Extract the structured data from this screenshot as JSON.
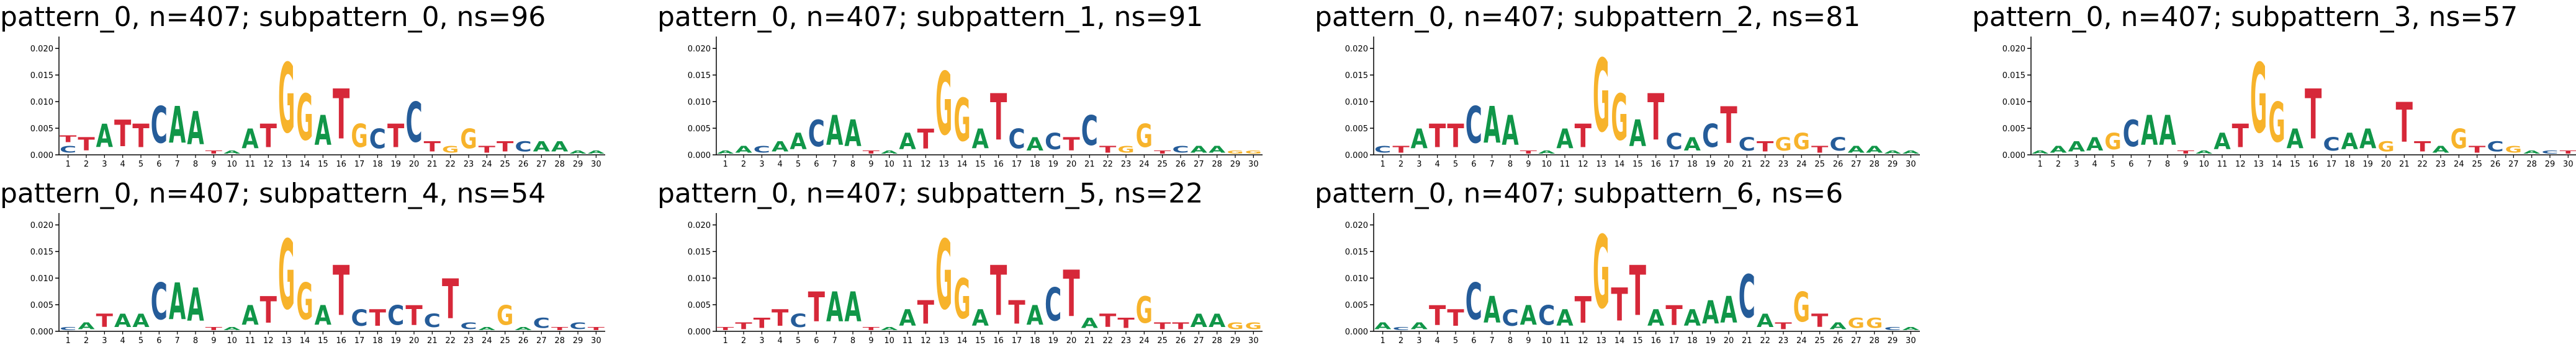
{
  "panels": [
    {
      "title": "pattern_0, n=407; subpattern_0, ns=96"
    },
    {
      "title": "pattern_0, n=407; subpattern_1, ns=91"
    },
    {
      "title": "pattern_0, n=407; subpattern_2, ns=81"
    },
    {
      "title": "pattern_0, n=407; subpattern_3, ns=57"
    },
    {
      "title": "pattern_0, n=407; subpattern_4, ns=54"
    },
    {
      "title": "pattern_0, n=407; subpattern_5, ns=22"
    },
    {
      "title": "pattern_0, n=407; subpattern_6, ns=6"
    }
  ],
  "colors": {
    "A": "#109648",
    "C": "#255c99",
    "G": "#f7b32b",
    "T": "#d62839"
  },
  "chart_data": {
    "type": "sequence-logo",
    "xticks": [
      "1",
      "2",
      "3",
      "4",
      "5",
      "6",
      "7",
      "8",
      "9",
      "10",
      "11",
      "12",
      "13",
      "14",
      "15",
      "16",
      "17",
      "18",
      "19",
      "20",
      "21",
      "22",
      "23",
      "24",
      "25",
      "26",
      "27",
      "28",
      "29",
      "30"
    ],
    "yticks": [
      "0.000",
      "0.005",
      "0.010",
      "0.015",
      "0.020"
    ],
    "ylim": [
      0,
      0.022
    ],
    "logos": [
      [
        [
          [
            "C",
            0.002
          ],
          [
            "T",
            0.002
          ]
        ],
        [
          [
            "T",
            0.004
          ]
        ],
        [
          [
            "A",
            0.007
          ]
        ],
        [
          [
            "T",
            0.008
          ]
        ],
        [
          [
            "T",
            0.007
          ]
        ],
        [
          [
            "C",
            0.011
          ]
        ],
        [
          [
            "A",
            0.011
          ]
        ],
        [
          [
            "A",
            0.01
          ]
        ],
        [
          [
            "T",
            0.001
          ]
        ],
        [
          [
            "A",
            0.001
          ]
        ],
        [
          [
            "A",
            0.006
          ]
        ],
        [
          [
            "T",
            0.007
          ]
        ],
        [
          [
            "G",
            0.021
          ]
        ],
        [
          [
            "G",
            0.014
          ]
        ],
        [
          [
            "A",
            0.009
          ]
        ],
        [
          [
            "T",
            0.015
          ]
        ],
        [
          [
            "G",
            0.007
          ]
        ],
        [
          [
            "C",
            0.006
          ]
        ],
        [
          [
            "T",
            0.007
          ]
        ],
        [
          [
            "C",
            0.012
          ]
        ],
        [
          [
            "T",
            0.003
          ]
        ],
        [
          [
            "G",
            0.002
          ]
        ],
        [
          [
            "G",
            0.006
          ]
        ],
        [
          [
            "T",
            0.002
          ]
        ],
        [
          [
            "T",
            0.003
          ]
        ],
        [
          [
            "C",
            0.003
          ]
        ],
        [
          [
            "A",
            0.003
          ]
        ],
        [
          [
            "A",
            0.003
          ]
        ],
        [
          [
            "A",
            0.001
          ]
        ],
        [
          [
            "A",
            0.001
          ]
        ]
      ],
      [
        [
          [
            "A",
            0.001
          ]
        ],
        [
          [
            "A",
            0.002
          ]
        ],
        [
          [
            "C",
            0.002
          ]
        ],
        [
          [
            "A",
            0.003
          ]
        ],
        [
          [
            "A",
            0.005
          ]
        ],
        [
          [
            "C",
            0.008
          ]
        ],
        [
          [
            "A",
            0.009
          ]
        ],
        [
          [
            "A",
            0.008
          ]
        ],
        [
          [
            "T",
            0.001
          ]
        ],
        [
          [
            "A",
            0.001
          ]
        ],
        [
          [
            "A",
            0.005
          ]
        ],
        [
          [
            "T",
            0.006
          ]
        ],
        [
          [
            "G",
            0.019
          ]
        ],
        [
          [
            "G",
            0.013
          ]
        ],
        [
          [
            "A",
            0.006
          ]
        ],
        [
          [
            "T",
            0.014
          ]
        ],
        [
          [
            "C",
            0.006
          ]
        ],
        [
          [
            "A",
            0.004
          ]
        ],
        [
          [
            "C",
            0.005
          ]
        ],
        [
          [
            "T",
            0.004
          ]
        ],
        [
          [
            "C",
            0.009
          ]
        ],
        [
          [
            "T",
            0.002
          ]
        ],
        [
          [
            "G",
            0.002
          ]
        ],
        [
          [
            "G",
            0.007
          ]
        ],
        [
          [
            "T",
            0.001
          ]
        ],
        [
          [
            "C",
            0.002
          ]
        ],
        [
          [
            "A",
            0.002
          ]
        ],
        [
          [
            "A",
            0.002
          ]
        ],
        [
          [
            "G",
            0.001
          ]
        ],
        [
          [
            "G",
            0.001
          ]
        ]
      ],
      [
        [
          [
            "C",
            0.002
          ]
        ],
        [
          [
            "T",
            0.002
          ]
        ],
        [
          [
            "A",
            0.006
          ]
        ],
        [
          [
            "T",
            0.007
          ]
        ],
        [
          [
            "T",
            0.007
          ]
        ],
        [
          [
            "C",
            0.011
          ]
        ],
        [
          [
            "A",
            0.011
          ]
        ],
        [
          [
            "A",
            0.009
          ]
        ],
        [
          [
            "T",
            0.001
          ]
        ],
        [
          [
            "A",
            0.001
          ]
        ],
        [
          [
            "A",
            0.006
          ]
        ],
        [
          [
            "T",
            0.007
          ]
        ],
        [
          [
            "G",
            0.022
          ]
        ],
        [
          [
            "G",
            0.014
          ]
        ],
        [
          [
            "A",
            0.008
          ]
        ],
        [
          [
            "T",
            0.014
          ]
        ],
        [
          [
            "C",
            0.005
          ]
        ],
        [
          [
            "A",
            0.004
          ]
        ],
        [
          [
            "C",
            0.007
          ]
        ],
        [
          [
            "T",
            0.011
          ]
        ],
        [
          [
            "C",
            0.004
          ]
        ],
        [
          [
            "T",
            0.003
          ]
        ],
        [
          [
            "G",
            0.004
          ]
        ],
        [
          [
            "G",
            0.005
          ]
        ],
        [
          [
            "T",
            0.002
          ]
        ],
        [
          [
            "C",
            0.004
          ]
        ],
        [
          [
            "A",
            0.002
          ]
        ],
        [
          [
            "A",
            0.002
          ]
        ],
        [
          [
            "A",
            0.001
          ]
        ],
        [
          [
            "A",
            0.001
          ]
        ]
      ],
      [
        [
          [
            "A",
            0.001
          ]
        ],
        [
          [
            "A",
            0.002
          ]
        ],
        [
          [
            "A",
            0.003
          ]
        ],
        [
          [
            "A",
            0.004
          ]
        ],
        [
          [
            "G",
            0.005
          ]
        ],
        [
          [
            "C",
            0.008
          ]
        ],
        [
          [
            "A",
            0.009
          ]
        ],
        [
          [
            "A",
            0.009
          ]
        ],
        [
          [
            "T",
            0.001
          ]
        ],
        [
          [
            "A",
            0.001
          ]
        ],
        [
          [
            "A",
            0.005
          ]
        ],
        [
          [
            "T",
            0.007
          ]
        ],
        [
          [
            "G",
            0.021
          ]
        ],
        [
          [
            "G",
            0.012
          ]
        ],
        [
          [
            "A",
            0.006
          ]
        ],
        [
          [
            "T",
            0.015
          ]
        ],
        [
          [
            "C",
            0.004
          ]
        ],
        [
          [
            "A",
            0.005
          ]
        ],
        [
          [
            "A",
            0.006
          ]
        ],
        [
          [
            "G",
            0.003
          ]
        ],
        [
          [
            "T",
            0.012
          ]
        ],
        [
          [
            "T",
            0.003
          ]
        ],
        [
          [
            "A",
            0.002
          ]
        ],
        [
          [
            "G",
            0.006
          ]
        ],
        [
          [
            "T",
            0.002
          ]
        ],
        [
          [
            "C",
            0.003
          ]
        ],
        [
          [
            "G",
            0.002
          ]
        ],
        [
          [
            "A",
            0.001
          ]
        ],
        [
          [
            "C",
            0.001
          ]
        ],
        [
          [
            "T",
            0.001
          ]
        ]
      ],
      [
        [
          [
            "C",
            0.001
          ]
        ],
        [
          [
            "A",
            0.002
          ]
        ],
        [
          [
            "T",
            0.004
          ]
        ],
        [
          [
            "A",
            0.004
          ]
        ],
        [
          [
            "A",
            0.004
          ]
        ],
        [
          [
            "C",
            0.011
          ]
        ],
        [
          [
            "A",
            0.011
          ]
        ],
        [
          [
            "A",
            0.01
          ]
        ],
        [
          [
            "T",
            0.001
          ]
        ],
        [
          [
            "A",
            0.001
          ]
        ],
        [
          [
            "A",
            0.006
          ]
        ],
        [
          [
            "T",
            0.008
          ]
        ],
        [
          [
            "G",
            0.021
          ]
        ],
        [
          [
            "G",
            0.011
          ]
        ],
        [
          [
            "A",
            0.006
          ]
        ],
        [
          [
            "T",
            0.015
          ]
        ],
        [
          [
            "C",
            0.005
          ]
        ],
        [
          [
            "T",
            0.005
          ]
        ],
        [
          [
            "C",
            0.006
          ]
        ],
        [
          [
            "T",
            0.006
          ]
        ],
        [
          [
            "C",
            0.004
          ]
        ],
        [
          [
            "T",
            0.012
          ]
        ],
        [
          [
            "C",
            0.002
          ]
        ],
        [
          [
            "A",
            0.001
          ]
        ],
        [
          [
            "G",
            0.006
          ]
        ],
        [
          [
            "A",
            0.001
          ]
        ],
        [
          [
            "C",
            0.003
          ]
        ],
        [
          [
            "T",
            0.001
          ]
        ],
        [
          [
            "C",
            0.002
          ]
        ],
        [
          [
            "T",
            0.001
          ]
        ]
      ],
      [
        [
          [
            "T",
            0.001
          ]
        ],
        [
          [
            "T",
            0.002
          ]
        ],
        [
          [
            "T",
            0.003
          ]
        ],
        [
          [
            "T",
            0.005
          ]
        ],
        [
          [
            "C",
            0.004
          ]
        ],
        [
          [
            "T",
            0.009
          ]
        ],
        [
          [
            "A",
            0.009
          ]
        ],
        [
          [
            "A",
            0.009
          ]
        ],
        [
          [
            "T",
            0.001
          ]
        ],
        [
          [
            "A",
            0.001
          ]
        ],
        [
          [
            "A",
            0.005
          ]
        ],
        [
          [
            "T",
            0.007
          ]
        ],
        [
          [
            "G",
            0.021
          ]
        ],
        [
          [
            "G",
            0.012
          ]
        ],
        [
          [
            "A",
            0.005
          ]
        ],
        [
          [
            "T",
            0.015
          ]
        ],
        [
          [
            "T",
            0.007
          ]
        ],
        [
          [
            "A",
            0.006
          ]
        ],
        [
          [
            "C",
            0.01
          ]
        ],
        [
          [
            "T",
            0.014
          ]
        ],
        [
          [
            "A",
            0.003
          ]
        ],
        [
          [
            "T",
            0.004
          ]
        ],
        [
          [
            "T",
            0.003
          ]
        ],
        [
          [
            "G",
            0.008
          ]
        ],
        [
          [
            "T",
            0.002
          ]
        ],
        [
          [
            "T",
            0.002
          ]
        ],
        [
          [
            "A",
            0.004
          ]
        ],
        [
          [
            "A",
            0.004
          ]
        ],
        [
          [
            "G",
            0.002
          ]
        ],
        [
          [
            "G",
            0.002
          ]
        ]
      ],
      [
        [
          [
            "A",
            0.002
          ]
        ],
        [
          [
            "C",
            0.001
          ]
        ],
        [
          [
            "A",
            0.002
          ]
        ],
        [
          [
            "T",
            0.006
          ]
        ],
        [
          [
            "T",
            0.005
          ]
        ],
        [
          [
            "C",
            0.011
          ]
        ],
        [
          [
            "A",
            0.008
          ]
        ],
        [
          [
            "C",
            0.005
          ]
        ],
        [
          [
            "A",
            0.006
          ]
        ],
        [
          [
            "C",
            0.006
          ]
        ],
        [
          [
            "A",
            0.005
          ]
        ],
        [
          [
            "T",
            0.008
          ]
        ],
        [
          [
            "G",
            0.022
          ]
        ],
        [
          [
            "T",
            0.01
          ]
        ],
        [
          [
            "T",
            0.015
          ]
        ],
        [
          [
            "A",
            0.005
          ]
        ],
        [
          [
            "T",
            0.006
          ]
        ],
        [
          [
            "A",
            0.005
          ]
        ],
        [
          [
            "A",
            0.007
          ]
        ],
        [
          [
            "A",
            0.008
          ]
        ],
        [
          [
            "C",
            0.013
          ]
        ],
        [
          [
            "A",
            0.004
          ]
        ],
        [
          [
            "T",
            0.002
          ]
        ],
        [
          [
            "G",
            0.009
          ]
        ],
        [
          [
            "T",
            0.004
          ]
        ],
        [
          [
            "A",
            0.002
          ]
        ],
        [
          [
            "G",
            0.003
          ]
        ],
        [
          [
            "G",
            0.003
          ]
        ],
        [
          [
            "C",
            0.001
          ]
        ],
        [
          [
            "A",
            0.001
          ]
        ]
      ]
    ]
  }
}
